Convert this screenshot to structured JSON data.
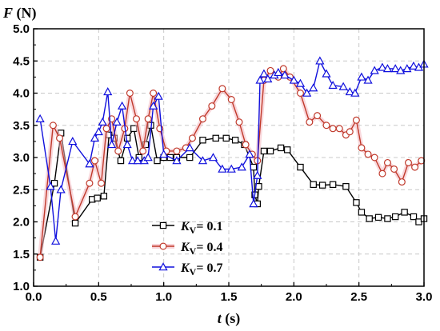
{
  "chart_data": {
    "type": "line",
    "xlabel": "t (s)",
    "ylabel": "F (N)",
    "xlim": [
      0.0,
      3.0
    ],
    "ylim": [
      1.0,
      5.0
    ],
    "xticks": [
      "0.0",
      "0.5",
      "1.0",
      "1.5",
      "2.0",
      "2.5",
      "3.0"
    ],
    "yticks": [
      "1.0",
      "1.5",
      "2.0",
      "2.5",
      "3.0",
      "3.5",
      "4.0",
      "4.5",
      "5.0"
    ],
    "grid": true,
    "legend_position": "lower-left",
    "series": [
      {
        "name": "Kv= 0.1",
        "label_var": "K",
        "label_sub": "V",
        "label_rest": "= 0.1",
        "color": "#000000",
        "marker": "square",
        "x": [
          0.05,
          0.16,
          0.21,
          0.32,
          0.45,
          0.49,
          0.54,
          0.58,
          0.62,
          0.67,
          0.72,
          0.77,
          0.81,
          0.86,
          0.9,
          0.95,
          1.0,
          1.05,
          1.1,
          1.2,
          1.3,
          1.4,
          1.48,
          1.55,
          1.62,
          1.69,
          1.7,
          1.72,
          1.73,
          1.77,
          1.82,
          1.9,
          1.95,
          2.05,
          2.15,
          2.22,
          2.3,
          2.4,
          2.48,
          2.52,
          2.58,
          2.65,
          2.72,
          2.78,
          2.85,
          2.92,
          2.96,
          3.0
        ],
        "y": [
          1.45,
          2.6,
          3.38,
          1.98,
          2.35,
          2.37,
          2.4,
          3.35,
          3.3,
          2.95,
          3.3,
          3.45,
          3.0,
          3.2,
          3.5,
          2.95,
          3.0,
          3.0,
          3.0,
          3.0,
          3.27,
          3.3,
          3.3,
          3.27,
          3.2,
          2.85,
          2.42,
          2.28,
          2.55,
          3.1,
          3.1,
          3.15,
          3.12,
          2.85,
          2.58,
          2.57,
          2.58,
          2.55,
          2.3,
          2.15,
          2.05,
          2.07,
          2.05,
          2.08,
          2.15,
          2.08,
          2.0,
          2.05
        ]
      },
      {
        "name": "Kv= 0.4",
        "label_var": "K",
        "label_sub": "V",
        "label_rest": "= 0.4",
        "color": "#c0392b",
        "marker": "circle",
        "x": [
          0.05,
          0.15,
          0.2,
          0.32,
          0.43,
          0.47,
          0.52,
          0.56,
          0.6,
          0.65,
          0.7,
          0.74,
          0.79,
          0.84,
          0.88,
          0.92,
          0.97,
          1.02,
          1.1,
          1.17,
          1.22,
          1.3,
          1.37,
          1.45,
          1.52,
          1.58,
          1.63,
          1.68,
          1.72,
          1.77,
          1.82,
          1.88,
          1.92,
          1.97,
          2.05,
          2.12,
          2.18,
          2.25,
          2.3,
          2.35,
          2.4,
          2.43,
          2.48,
          2.52,
          2.57,
          2.62,
          2.68,
          2.72,
          2.77,
          2.83,
          2.88,
          2.93,
          2.98
        ],
        "y": [
          1.45,
          3.5,
          3.3,
          2.08,
          2.6,
          2.95,
          2.6,
          3.45,
          3.6,
          3.1,
          3.45,
          4.0,
          3.6,
          3.1,
          3.6,
          4.0,
          3.45,
          3.1,
          3.1,
          3.15,
          3.3,
          3.6,
          3.8,
          4.07,
          3.9,
          3.55,
          3.2,
          3.05,
          2.95,
          4.2,
          4.35,
          4.25,
          4.38,
          4.25,
          4.0,
          3.55,
          3.65,
          3.5,
          3.45,
          3.45,
          3.35,
          3.4,
          3.58,
          3.15,
          3.05,
          3.0,
          2.75,
          2.92,
          2.82,
          2.62,
          2.92,
          2.85,
          2.95
        ]
      },
      {
        "name": "Kv= 0.7",
        "label_var": "K",
        "label_sub": "V",
        "label_rest": "= 0.7",
        "color": "#1010dd",
        "marker": "triangle",
        "x": [
          0.05,
          0.13,
          0.17,
          0.21,
          0.3,
          0.43,
          0.47,
          0.5,
          0.53,
          0.57,
          0.6,
          0.64,
          0.68,
          0.72,
          0.76,
          0.8,
          0.85,
          0.88,
          0.92,
          0.96,
          1.0,
          1.1,
          1.2,
          1.3,
          1.38,
          1.45,
          1.52,
          1.6,
          1.66,
          1.69,
          1.72,
          1.74,
          1.77,
          1.8,
          1.85,
          1.88,
          1.93,
          2.0,
          2.05,
          2.1,
          2.15,
          2.2,
          2.25,
          2.3,
          2.38,
          2.43,
          2.47,
          2.52,
          2.57,
          2.62,
          2.68,
          2.72,
          2.78,
          2.82,
          2.87,
          2.92,
          2.96,
          3.0
        ],
        "y": [
          3.6,
          2.55,
          1.7,
          2.5,
          3.25,
          2.9,
          3.3,
          3.4,
          3.55,
          4.02,
          3.2,
          3.55,
          3.8,
          3.2,
          2.95,
          2.95,
          2.95,
          3.0,
          3.8,
          3.95,
          3.05,
          2.95,
          3.15,
          2.95,
          3.0,
          2.82,
          2.82,
          2.85,
          3.05,
          2.28,
          2.72,
          4.2,
          4.3,
          4.22,
          4.28,
          4.32,
          4.28,
          4.2,
          4.15,
          4.0,
          4.08,
          4.5,
          4.3,
          4.12,
          4.1,
          4.02,
          4.0,
          4.25,
          4.2,
          4.35,
          4.4,
          4.38,
          4.38,
          4.35,
          4.38,
          4.42,
          4.4,
          4.45
        ]
      }
    ]
  }
}
